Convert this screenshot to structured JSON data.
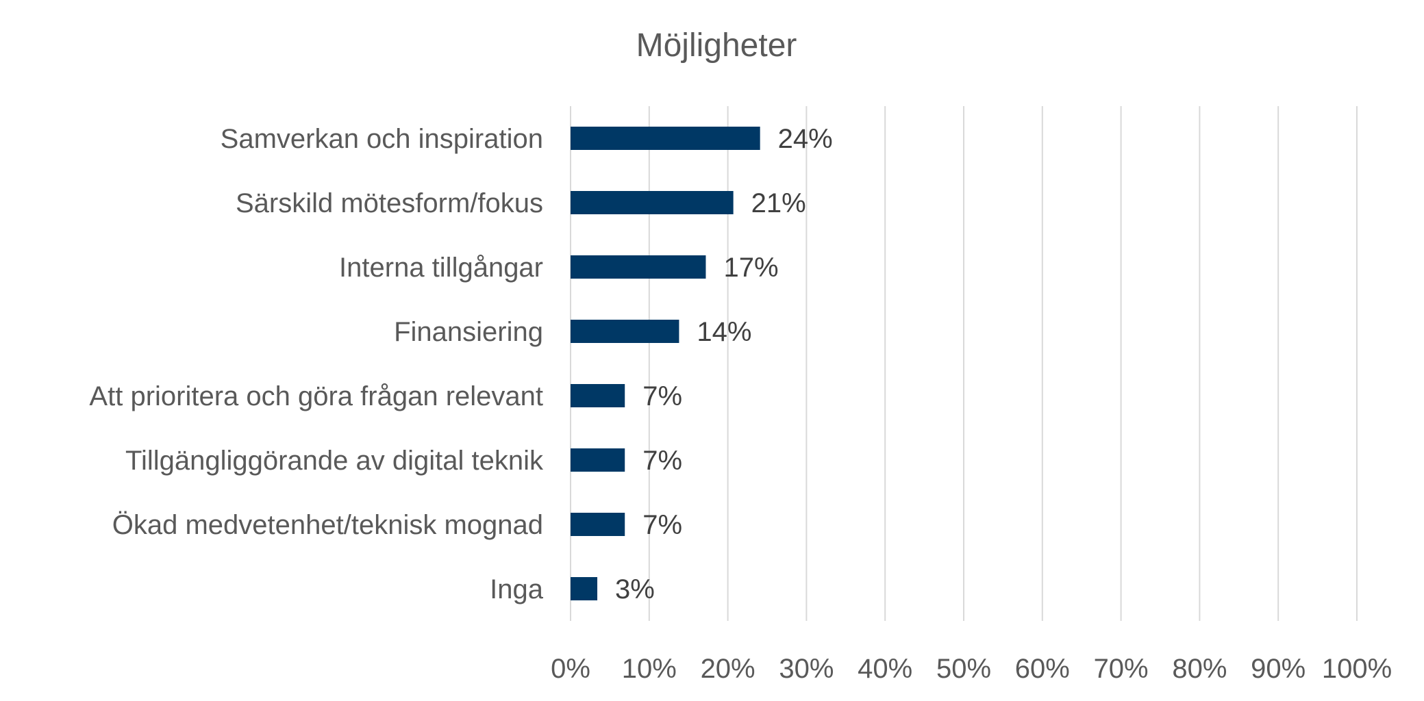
{
  "chart_data": {
    "type": "bar",
    "orientation": "horizontal",
    "title": "Möjligheter",
    "xlabel": "",
    "ylabel": "",
    "categories": [
      "Samverkan och inspiration",
      "Särskild mötesform/fokus",
      "Interna tillgångar",
      "Finansiering",
      "Att prioritera och göra frågan relevant",
      "Tillgängliggörande av digital teknik",
      "Ökad medvetenhet/teknisk mognad",
      "Inga"
    ],
    "values": [
      24.1,
      20.7,
      17.2,
      13.8,
      6.9,
      6.9,
      6.9,
      3.4
    ],
    "data_labels": [
      "24%",
      "21%",
      "17%",
      "14%",
      "7%",
      "7%",
      "7%",
      "3%"
    ],
    "xlim": [
      0,
      100
    ],
    "x_ticks": [
      "0%",
      "10%",
      "20%",
      "30%",
      "40%",
      "50%",
      "60%",
      "70%",
      "80%",
      "90%",
      "100%"
    ],
    "grid": "vertical",
    "legend": "none",
    "colors": {
      "bar": "#003865",
      "gridline": "#d9d9d9",
      "text": "#595959"
    }
  }
}
